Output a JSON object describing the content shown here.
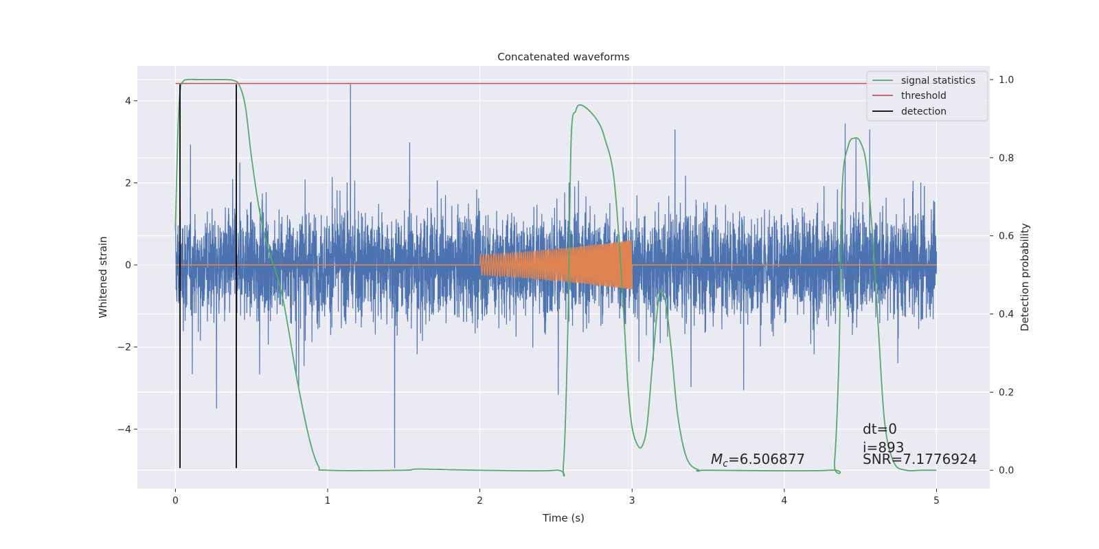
{
  "chart_data": {
    "type": "line",
    "title": "Concatenated waveforms",
    "xlabel": "Time (s)",
    "ylabel": "Whitened strain",
    "y2label": "Detection probability",
    "xlim": [
      -0.25,
      5.35
    ],
    "ylim": [
      -5.45,
      4.85
    ],
    "y2lim": [
      -0.047,
      1.035
    ],
    "xticks": [
      0,
      1,
      2,
      3,
      4,
      5
    ],
    "yticks": [
      -4,
      -2,
      0,
      2,
      4
    ],
    "y2ticks": [
      0.0,
      0.2,
      0.4,
      0.6,
      0.8,
      1.0
    ],
    "xtick_labels": [
      "0",
      "1",
      "2",
      "3",
      "4",
      "5"
    ],
    "ytick_labels": [
      "−4",
      "−2",
      "0",
      "2",
      "4"
    ],
    "y2tick_labels": [
      "0.0",
      "0.2",
      "0.4",
      "0.6",
      "0.8",
      "1.0"
    ],
    "grid": true,
    "legend_position": "top-right",
    "colors": {
      "strain": "#4c72b0",
      "template": "#dd8452",
      "signal_statistics": "#55a868",
      "threshold": "#c44e52",
      "detection": "#000000",
      "plot_background": "#eaeaf2",
      "grid": "#ffffff"
    },
    "noise": {
      "x_range": [
        0,
        5
      ],
      "core_amplitude": 1.2,
      "spikes": [
        {
          "x": 0.27,
          "y": -3.5
        },
        {
          "x": 1.15,
          "y": 4.4
        },
        {
          "x": 1.44,
          "y": -4.95
        },
        {
          "x": 4.4,
          "y": 3.45
        }
      ]
    },
    "chirp": {
      "x_start": 2.0,
      "x_end": 3.0,
      "amplitude_start": 0.25,
      "amplitude_end": 0.6
    },
    "series": [
      {
        "name": "signal statistics",
        "axis": "right",
        "x": [
          0,
          0.015,
          0.03,
          0.05,
          0.08,
          0.15,
          0.3,
          0.38,
          0.42,
          0.46,
          0.5,
          0.55,
          0.6,
          0.7,
          0.8,
          0.88,
          0.94,
          1.0,
          1.5,
          1.6,
          2.0,
          2.5,
          2.55,
          2.58,
          2.6,
          2.63,
          2.66,
          2.72,
          2.78,
          2.82,
          2.88,
          2.93,
          2.97,
          3.0,
          3.04,
          3.07,
          3.1,
          3.14,
          3.18,
          3.22,
          3.26,
          3.3,
          3.36,
          3.44,
          3.5,
          4.3,
          4.33,
          4.36,
          4.38,
          4.42,
          4.46,
          4.5,
          4.54,
          4.58,
          4.62,
          4.66,
          4.72,
          4.8,
          4.9,
          5.0
        ],
        "y": [
          0.62,
          0.85,
          0.97,
          0.995,
          1.0,
          1.0,
          1.0,
          0.998,
          0.985,
          0.93,
          0.8,
          0.67,
          0.58,
          0.45,
          0.23,
          0.08,
          0.01,
          0.0,
          0.0,
          0.003,
          0.0,
          0.0,
          0.02,
          0.4,
          0.85,
          0.92,
          0.935,
          0.92,
          0.89,
          0.85,
          0.75,
          0.5,
          0.23,
          0.11,
          0.062,
          0.065,
          0.12,
          0.3,
          0.45,
          0.43,
          0.3,
          0.14,
          0.03,
          0.0,
          0.0,
          0.0,
          0.02,
          0.3,
          0.72,
          0.83,
          0.85,
          0.84,
          0.78,
          0.6,
          0.35,
          0.12,
          0.02,
          0.0,
          0.0,
          0.0
        ]
      },
      {
        "name": "threshold",
        "axis": "right",
        "x": [
          0,
          5
        ],
        "y": [
          0.99,
          0.99
        ]
      },
      {
        "name": "detection",
        "axis": "left",
        "x": [
          0.03,
          0.4
        ],
        "y_range": [
          -4.95,
          4.4
        ]
      }
    ],
    "annotations": {
      "mc": "$M_c$=6.506877",
      "dt": "dt=0",
      "i": "i=893",
      "snr": "SNR=7.1776924"
    }
  }
}
